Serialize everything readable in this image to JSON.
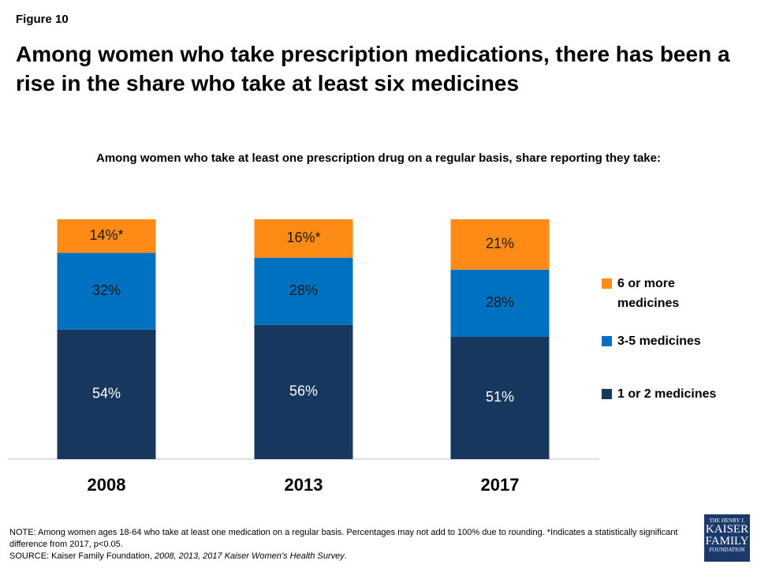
{
  "figure_label": "Figure 10",
  "chart_data": {
    "type": "stacked-bar",
    "title": "Among women who take prescription medications, there has been a rise in the share who take at least six medicines",
    "subtitle": "Among women who take at least one prescription drug on a regular basis, share reporting they take:",
    "categories": [
      "2008",
      "2013",
      "2017"
    ],
    "series": [
      {
        "name": "1 or 2 medicines",
        "color": "#17375e",
        "values": [
          54,
          56,
          51
        ],
        "value_labels": [
          "54%",
          "56%",
          "51%"
        ]
      },
      {
        "name": "3-5 medicines",
        "color": "#0070c0",
        "values": [
          32,
          28,
          28
        ],
        "value_labels": [
          "32%",
          "28%",
          "28%"
        ]
      },
      {
        "name": "6 or more medicines",
        "color": "#fd8b16",
        "values": [
          14,
          16,
          21
        ],
        "value_labels": [
          "14%*",
          "16%*",
          "21%"
        ]
      }
    ]
  },
  "note": "NOTE:  Among women ages 18-64 who take at least one medication on a regular basis.  Percentages may not add to 100% due to rounding. *Indicates a statistically significant difference from 2017, p<0.05.",
  "source": [
    "SOURCE:  Kaiser Family Foundation, ",
    "2008, 2013, 2017 Kaiser Women’s Health Survey",
    "."
  ],
  "logo": [
    "THE HENRY J.",
    "KAISER",
    "FAMILY",
    "FOUNDATION"
  ]
}
